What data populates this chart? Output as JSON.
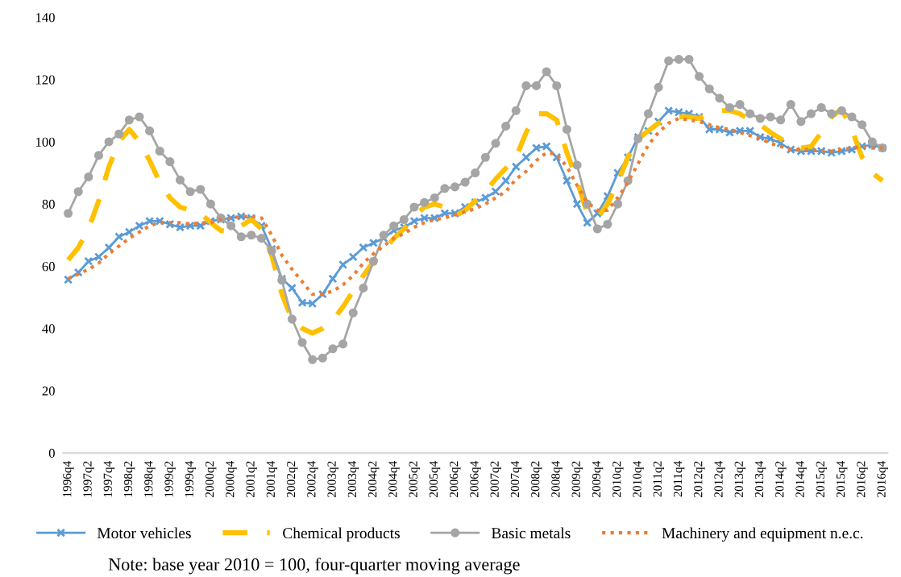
{
  "chart_data": {
    "type": "line",
    "categories": [
      "1996q4",
      null,
      "1997q2",
      null,
      "1997q4",
      null,
      "1998q2",
      null,
      "1998q4",
      null,
      "1999q2",
      null,
      "1999q4",
      null,
      "2000q2",
      null,
      "2000q4",
      null,
      "2001q2",
      null,
      "2001q4",
      null,
      "2002q2",
      null,
      "2002q4",
      null,
      "2003q2",
      null,
      "2003q4",
      null,
      "2004q2",
      null,
      "2004q4",
      null,
      "2005q2",
      null,
      "2005q4",
      null,
      "2006q2",
      null,
      "2006q4",
      null,
      "2007q2",
      null,
      "2007q4",
      null,
      "2008q2",
      null,
      "2008q4",
      null,
      "2009q2",
      null,
      "2009q4",
      null,
      "2010q2",
      null,
      "2010q4",
      null,
      "2011q2",
      null,
      "2011q4",
      null,
      "2012q2",
      null,
      "2012q4",
      null,
      "2013q2",
      null,
      "2013q4",
      null,
      "2014q2",
      null,
      "2014q4",
      null,
      "2015q2",
      null,
      "2015q4",
      null,
      "2016q2",
      null,
      "2016q4"
    ],
    "series": [
      {
        "name": "Motor vehicles",
        "color": "#5b9bd5",
        "marker": "cross",
        "line_style": "solid",
        "values": [
          55.7,
          58,
          61.6,
          63,
          66,
          69.5,
          71,
          73,
          74.5,
          74.5,
          73.5,
          72.5,
          73,
          73,
          74.5,
          75,
          75.5,
          76,
          75.5,
          73,
          65.5,
          56,
          53,
          48.3,
          48,
          51,
          56,
          60.5,
          63,
          66,
          67.5,
          69,
          71.5,
          72.5,
          74.5,
          75.5,
          75.5,
          77,
          77,
          79,
          80.5,
          82,
          84,
          87.5,
          92,
          95,
          98,
          98.5,
          95,
          87.5,
          80,
          74,
          77,
          82.5,
          90,
          95,
          101.5,
          103.5,
          106.5,
          110,
          109.5,
          109,
          108,
          104,
          104,
          103,
          103.5,
          103.5,
          101.5,
          101,
          99.5,
          97.5,
          97,
          97,
          97,
          96.5,
          97,
          97.5,
          98.5,
          99,
          98
        ]
      },
      {
        "name": "Chemical products",
        "color": "#ffc000",
        "marker": "none",
        "line_style": "dashed",
        "values": [
          62,
          66,
          72,
          81,
          92,
          100,
          104,
          100,
          94,
          87,
          82,
          79,
          78,
          77,
          74,
          71.5,
          71,
          73,
          75,
          72,
          63.5,
          51,
          43,
          40,
          38.5,
          40,
          42.5,
          47,
          52,
          57,
          61.5,
          65,
          69,
          72,
          76,
          79,
          80,
          79,
          76,
          78,
          81,
          84,
          88,
          91.5,
          95,
          103,
          109,
          109,
          107,
          96.5,
          87.5,
          77,
          75.5,
          80,
          87,
          95,
          101,
          103.5,
          106,
          107.5,
          108,
          108,
          107.5,
          109,
          110,
          110,
          109,
          107,
          105.5,
          103,
          101,
          99,
          98,
          98.5,
          103,
          108,
          110.5,
          104,
          95,
          90,
          87.5
        ]
      },
      {
        "name": "Basic metals",
        "color": "#a5a5a5",
        "marker": "circle",
        "line_style": "solid",
        "values": [
          77,
          84,
          88.7,
          95.6,
          100,
          102.5,
          107,
          108,
          103.5,
          97,
          93.6,
          87.7,
          84,
          84.7,
          80,
          75.5,
          73,
          69.5,
          70,
          69,
          65,
          55.5,
          43,
          35.5,
          30,
          30.5,
          33.5,
          35,
          45,
          53,
          61.6,
          70,
          73,
          75,
          79,
          80.5,
          82,
          85,
          85.5,
          87,
          90,
          95,
          99.5,
          105,
          110,
          118,
          118,
          122.5,
          118,
          104,
          92.5,
          80,
          72,
          73.5,
          80,
          87.5,
          101,
          109,
          117.5,
          126,
          126.5,
          126.5,
          121,
          117,
          114,
          111,
          112,
          109,
          107.5,
          108,
          107,
          112,
          106.5,
          109,
          111,
          109,
          110,
          108,
          105.5,
          100,
          98
        ]
      },
      {
        "name": "Machinery and equipment n.e.c.",
        "color": "#ed7d31",
        "marker": "none",
        "line_style": "dotted",
        "values": [
          56,
          57.5,
          59,
          61,
          64,
          66.5,
          69,
          71,
          73,
          74,
          74,
          74,
          73.5,
          74,
          74,
          75,
          75.5,
          76,
          76,
          75.5,
          70,
          63.5,
          59,
          55,
          51,
          51,
          52,
          54,
          57,
          61,
          64,
          66.5,
          69,
          70.5,
          72.5,
          74,
          75,
          75.5,
          76.5,
          77.5,
          78.5,
          80,
          82,
          84,
          88,
          90.5,
          94,
          96.5,
          96,
          92,
          86,
          80.5,
          78,
          78,
          82,
          87,
          93,
          99,
          103,
          106,
          107.5,
          107,
          106.5,
          105.5,
          104.5,
          104,
          103,
          102,
          101,
          99.5,
          98.5,
          97.5,
          97.5,
          97.5,
          97,
          97,
          97.5,
          98,
          98.5,
          98,
          98
        ]
      }
    ],
    "ylim": [
      0,
      140
    ],
    "yticks": [
      0,
      20,
      40,
      60,
      80,
      100,
      120,
      140
    ],
    "grid": false,
    "legend": "bottom",
    "annotations": [
      "Note: base year 2010 = 100, four-quarter moving average"
    ]
  }
}
